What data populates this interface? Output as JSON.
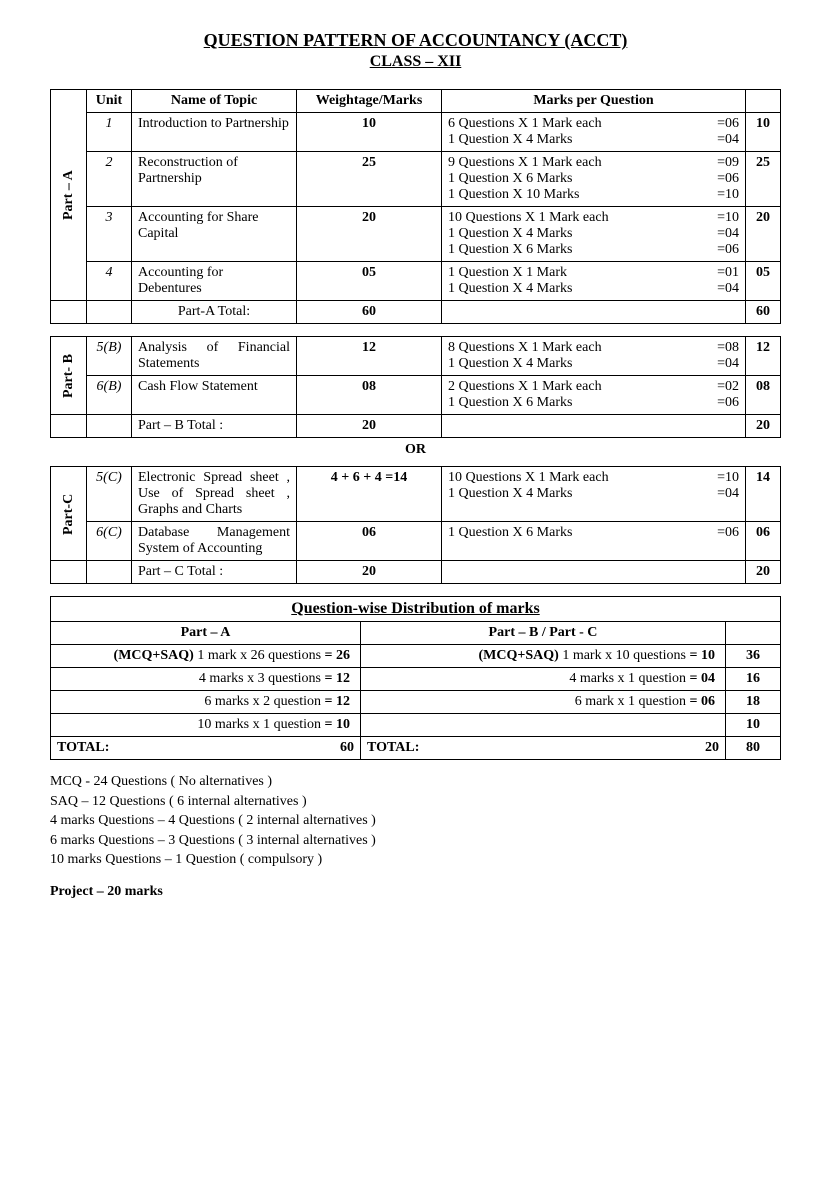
{
  "title": "QUESTION PATTERN OF ACCOUNTANCY (ACCT)",
  "subtitle": "CLASS – XII",
  "headers": {
    "unit": "Unit",
    "topic": "Name of Topic",
    "weightage": "Weightage/Marks",
    "mpq": "Marks per Question"
  },
  "partA": {
    "label": "Part – A",
    "rows": [
      {
        "unit": "1",
        "topic": "Introduction to Partnership",
        "weightage": "10",
        "mpq": [
          {
            "l": "6 Questions X 1 Mark each",
            "r": "=06"
          },
          {
            "l": "1 Question X 4 Marks",
            "r": "=04"
          }
        ],
        "total": "10"
      },
      {
        "unit": "2",
        "topic": "Reconstruction of Partnership",
        "weightage": "25",
        "mpq": [
          {
            "l": "9 Questions X 1 Mark each",
            "r": "=09"
          },
          {
            "l": "1 Question X 6 Marks",
            "r": "=06"
          },
          {
            "l": "1 Question X 10 Marks",
            "r": "=10"
          }
        ],
        "total": "25"
      },
      {
        "unit": "3",
        "topic": "Accounting for Share Capital",
        "weightage": "20",
        "mpq": [
          {
            "l": "10 Questions X 1 Mark each",
            "r": "=10"
          },
          {
            "l": "1 Question X 4 Marks",
            "r": "=04"
          },
          {
            "l": "1 Question X 6 Marks",
            "r": "=06"
          }
        ],
        "total": "20"
      },
      {
        "unit": "4",
        "topic": "Accounting for Debentures",
        "weightage": "05",
        "mpq": [
          {
            "l": "1 Question X 1 Mark",
            "r": "=01"
          },
          {
            "l": "1 Question X 4 Marks",
            "r": "=04"
          }
        ],
        "total": "05"
      }
    ],
    "totalLabel": "Part-A Total:",
    "totalWeight": "60",
    "totalRight": "60"
  },
  "partB": {
    "label": "Part- B",
    "rows": [
      {
        "unit": "5(B)",
        "topic": "Analysis of Financial Statements",
        "weightage": "12",
        "mpq": [
          {
            "l": "8 Questions X 1 Mark each",
            "r": "=08"
          },
          {
            "l": "1 Question X 4 Marks",
            "r": "=04"
          }
        ],
        "total": "12"
      },
      {
        "unit": "6(B)",
        "topic": "Cash Flow Statement",
        "weightage": "08",
        "mpq": [
          {
            "l": "2 Questions X 1 Mark each",
            "r": "=02"
          },
          {
            "l": "1 Question X 6 Marks",
            "r": "=06"
          }
        ],
        "total": "08"
      }
    ],
    "totalLabel": "Part – B Total :",
    "totalWeight": "20",
    "totalRight": "20"
  },
  "orLabel": "OR",
  "partC": {
    "label": "Part-C",
    "rows": [
      {
        "unit": "5(C)",
        "topic": "Electronic Spread sheet , Use of Spread sheet , Graphs and Charts",
        "weightage": "4 + 6 + 4 =14",
        "mpq": [
          {
            "l": "10 Questions X 1 Mark each",
            "r": "=10"
          },
          {
            "l": "1 Question X 4 Marks",
            "r": "=04"
          }
        ],
        "total": "14"
      },
      {
        "unit": "6(C)",
        "topic": "Database Management System of Accounting",
        "weightage": "06",
        "mpq": [
          {
            "l": "1 Question X 6 Marks",
            "r": "=06"
          }
        ],
        "total": "06"
      }
    ],
    "totalLabel": "Part – C Total :",
    "totalWeight": "20",
    "totalRight": "20"
  },
  "dist": {
    "title": "Question-wise Distribution of marks",
    "colA": "Part – A",
    "colB": "Part – B / Part - C",
    "rows": [
      {
        "a": "(MCQ+SAQ) 1 mark x 26 questions  = 26",
        "aBoldPrefix": "(MCQ+SAQ)",
        "b": "(MCQ+SAQ) 1 mark x 10 questions = 10",
        "bBoldPrefix": "(MCQ+SAQ)",
        "t": "36"
      },
      {
        "a": "4 marks x 3 questions  = 12",
        "b": "4 marks x 1 question   = 04",
        "t": "16"
      },
      {
        "a": "6 marks x 2 question   = 12",
        "b": "6  mark x 1 question   = 06",
        "t": "18"
      },
      {
        "a": "10 marks x 1 question =  10",
        "b": "",
        "t": "10"
      }
    ],
    "totalA": "TOTAL:",
    "totalAv": "60",
    "totalB": "TOTAL:",
    "totalBv": "20",
    "totalT": "80"
  },
  "notes": [
    "MCQ -  24 Questions ( No alternatives )",
    "SAQ – 12 Questions ( 6 internal alternatives )",
    "4 marks Questions – 4 Questions ( 2 internal alternatives )",
    "6 marks Questions – 3 Questions ( 3 internal alternatives )",
    "10 marks Questions – 1 Question ( compulsory )"
  ],
  "project": "Project – 20 marks"
}
